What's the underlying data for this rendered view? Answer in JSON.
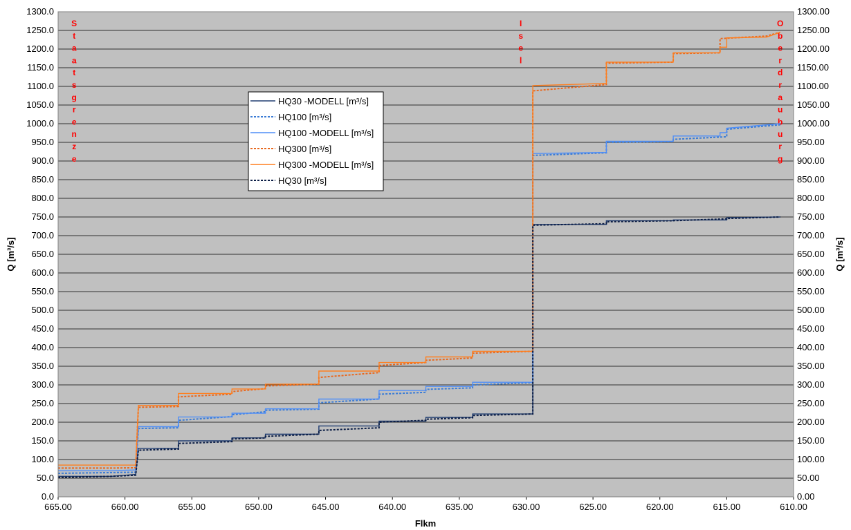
{
  "chart_data": {
    "type": "line",
    "xlabel": "Flkm",
    "ylabel": "Q [m³/s]",
    "y2label": "Q [m³/s]",
    "xlim": [
      665,
      610
    ],
    "ylim": [
      0,
      1300
    ],
    "x_ticks": [
      "665.00",
      "660.00",
      "655.00",
      "650.00",
      "645.00",
      "640.00",
      "635.00",
      "630.00",
      "625.00",
      "620.00",
      "615.00",
      "610.00"
    ],
    "y_ticks": [
      "0.0",
      "50.0",
      "100.0",
      "150.0",
      "200.0",
      "250.0",
      "300.0",
      "350.0",
      "400.0",
      "450.0",
      "500.0",
      "550.0",
      "600.0",
      "650.0",
      "700.0",
      "750.0",
      "800.0",
      "850.0",
      "900.0",
      "950.0",
      "1000.0",
      "1050.0",
      "1100.0",
      "1150.0",
      "1200.0",
      "1250.0",
      "1300.0"
    ],
    "y2_ticks": [
      "0.00",
      "50.00",
      "100.00",
      "150.00",
      "200.00",
      "250.00",
      "300.00",
      "350.00",
      "400.00",
      "450.00",
      "500.00",
      "550.00",
      "600.00",
      "650.00",
      "700.00",
      "750.00",
      "800.00",
      "850.00",
      "900.00",
      "950.00",
      "1000.00",
      "1050.00",
      "1100.00",
      "1150.00",
      "1200.00",
      "1250.00",
      "1300.00"
    ],
    "grid": true,
    "legend_position": "upper-left-center",
    "background": "#c0c0c0",
    "annotations": [
      {
        "text": "Staatsgrenze",
        "x": 663.8,
        "color": "#ff0000"
      },
      {
        "text": "Isel",
        "x": 630.4,
        "color": "#ff0000"
      },
      {
        "text": "Oberdrauburg",
        "x": 611.0,
        "color": "#ff0000"
      }
    ],
    "series": [
      {
        "name": "HQ30 -MODELL [m³/s]",
        "color": "#1f3c70",
        "dash": "solid",
        "points": [
          [
            665,
            55
          ],
          [
            661,
            55
          ],
          [
            659.2,
            60
          ],
          [
            659,
            130
          ],
          [
            656,
            130
          ],
          [
            656,
            150
          ],
          [
            652,
            150
          ],
          [
            652,
            158
          ],
          [
            649.5,
            158
          ],
          [
            649.5,
            168
          ],
          [
            645.5,
            168
          ],
          [
            645.5,
            190
          ],
          [
            641,
            190
          ],
          [
            641,
            203
          ],
          [
            637.5,
            203
          ],
          [
            637.5,
            213
          ],
          [
            634,
            213
          ],
          [
            634,
            222
          ],
          [
            629.5,
            222
          ],
          [
            629.5,
            730
          ],
          [
            624,
            730
          ],
          [
            624,
            740
          ],
          [
            619,
            740
          ],
          [
            619,
            742
          ],
          [
            615,
            742
          ],
          [
            615,
            748
          ],
          [
            611,
            750
          ]
        ]
      },
      {
        "name": "HQ100 [m³/s]",
        "color": "#3a7bd5",
        "dash": "dotted",
        "points": [
          [
            665,
            63
          ],
          [
            661,
            65
          ],
          [
            659.2,
            66
          ],
          [
            659,
            183
          ],
          [
            656,
            185
          ],
          [
            656,
            205
          ],
          [
            652,
            215
          ],
          [
            652,
            220
          ],
          [
            649.5,
            228
          ],
          [
            649.5,
            232
          ],
          [
            645.5,
            235
          ],
          [
            645.5,
            252
          ],
          [
            641,
            262
          ],
          [
            641,
            275
          ],
          [
            637.5,
            280
          ],
          [
            637.5,
            288
          ],
          [
            634,
            292
          ],
          [
            634,
            300
          ],
          [
            629.5,
            306
          ],
          [
            629.5,
            915
          ],
          [
            624,
            922
          ],
          [
            624,
            950
          ],
          [
            619,
            952
          ],
          [
            619,
            958
          ],
          [
            615,
            965
          ],
          [
            615,
            985
          ],
          [
            611,
            997
          ]
        ]
      },
      {
        "name": "HQ100 -MODELL [m³/s]",
        "color": "#4f8ef7",
        "dash": "solid",
        "points": [
          [
            665,
            70
          ],
          [
            661,
            70
          ],
          [
            659.2,
            72
          ],
          [
            659,
            188
          ],
          [
            656,
            188
          ],
          [
            656,
            214
          ],
          [
            652,
            214
          ],
          [
            652,
            224
          ],
          [
            649.5,
            224
          ],
          [
            649.5,
            236
          ],
          [
            645.5,
            236
          ],
          [
            645.5,
            262
          ],
          [
            641,
            262
          ],
          [
            641,
            285
          ],
          [
            637.5,
            285
          ],
          [
            637.5,
            296
          ],
          [
            634,
            296
          ],
          [
            634,
            307
          ],
          [
            629.5,
            307
          ],
          [
            629.5,
            920
          ],
          [
            624,
            923
          ],
          [
            624,
            953
          ],
          [
            619,
            953
          ],
          [
            619,
            967
          ],
          [
            615.5,
            967
          ],
          [
            615.5,
            976
          ],
          [
            615,
            976
          ],
          [
            615,
            988
          ],
          [
            611,
            1000
          ]
        ]
      },
      {
        "name": "HQ300 [m³/s]",
        "color": "#e8681e",
        "dash": "dotted",
        "points": [
          [
            665,
            77
          ],
          [
            661,
            77
          ],
          [
            659.2,
            78
          ],
          [
            659,
            240
          ],
          [
            656,
            242
          ],
          [
            656,
            268
          ],
          [
            652,
            275
          ],
          [
            652,
            282
          ],
          [
            649.5,
            290
          ],
          [
            649.5,
            297
          ],
          [
            645.5,
            302
          ],
          [
            645.5,
            320
          ],
          [
            641,
            333
          ],
          [
            641,
            352
          ],
          [
            637.5,
            360
          ],
          [
            637.5,
            366
          ],
          [
            634,
            372
          ],
          [
            634,
            385
          ],
          [
            629.5,
            390
          ],
          [
            629.5,
            1088
          ],
          [
            624,
            1105
          ],
          [
            624,
            1162
          ],
          [
            619,
            1165
          ],
          [
            619,
            1188
          ],
          [
            615.5,
            1190
          ],
          [
            615.5,
            1228
          ],
          [
            612,
            1235
          ],
          [
            611,
            1245
          ]
        ]
      },
      {
        "name": "HQ300 -MODELL [m³/s]",
        "color": "#ff7f1f",
        "dash": "solid",
        "points": [
          [
            665,
            85
          ],
          [
            661,
            85
          ],
          [
            659.2,
            85
          ],
          [
            659,
            245
          ],
          [
            656,
            245
          ],
          [
            656,
            277
          ],
          [
            652,
            277
          ],
          [
            652,
            289
          ],
          [
            649.5,
            289
          ],
          [
            649.5,
            302
          ],
          [
            645.5,
            302
          ],
          [
            645.5,
            337
          ],
          [
            641,
            337
          ],
          [
            641,
            360
          ],
          [
            637.5,
            360
          ],
          [
            637.5,
            375
          ],
          [
            634,
            375
          ],
          [
            634,
            390
          ],
          [
            629.5,
            390
          ],
          [
            629.5,
            1102
          ],
          [
            624,
            1108
          ],
          [
            624,
            1165
          ],
          [
            619,
            1165
          ],
          [
            619,
            1190
          ],
          [
            615.5,
            1190
          ],
          [
            615.5,
            1205
          ],
          [
            615,
            1205
          ],
          [
            615,
            1230
          ],
          [
            612,
            1232
          ],
          [
            611,
            1245
          ]
        ]
      },
      {
        "name": "HQ30 [m³/s]",
        "color": "#0c1e46",
        "dash": "dotted",
        "points": [
          [
            665,
            52
          ],
          [
            661,
            55
          ],
          [
            659.2,
            58
          ],
          [
            659,
            125
          ],
          [
            656,
            128
          ],
          [
            656,
            143
          ],
          [
            652,
            148
          ],
          [
            652,
            155
          ],
          [
            649.5,
            158
          ],
          [
            649.5,
            162
          ],
          [
            645.5,
            168
          ],
          [
            645.5,
            178
          ],
          [
            641,
            185
          ],
          [
            641,
            200
          ],
          [
            637.5,
            205
          ],
          [
            637.5,
            208
          ],
          [
            634,
            212
          ],
          [
            634,
            218
          ],
          [
            629.5,
            222
          ],
          [
            629.5,
            728
          ],
          [
            624,
            732
          ],
          [
            624,
            737
          ],
          [
            619,
            740
          ],
          [
            619,
            740
          ],
          [
            615,
            745
          ],
          [
            615,
            746
          ],
          [
            611,
            750
          ]
        ]
      }
    ]
  }
}
